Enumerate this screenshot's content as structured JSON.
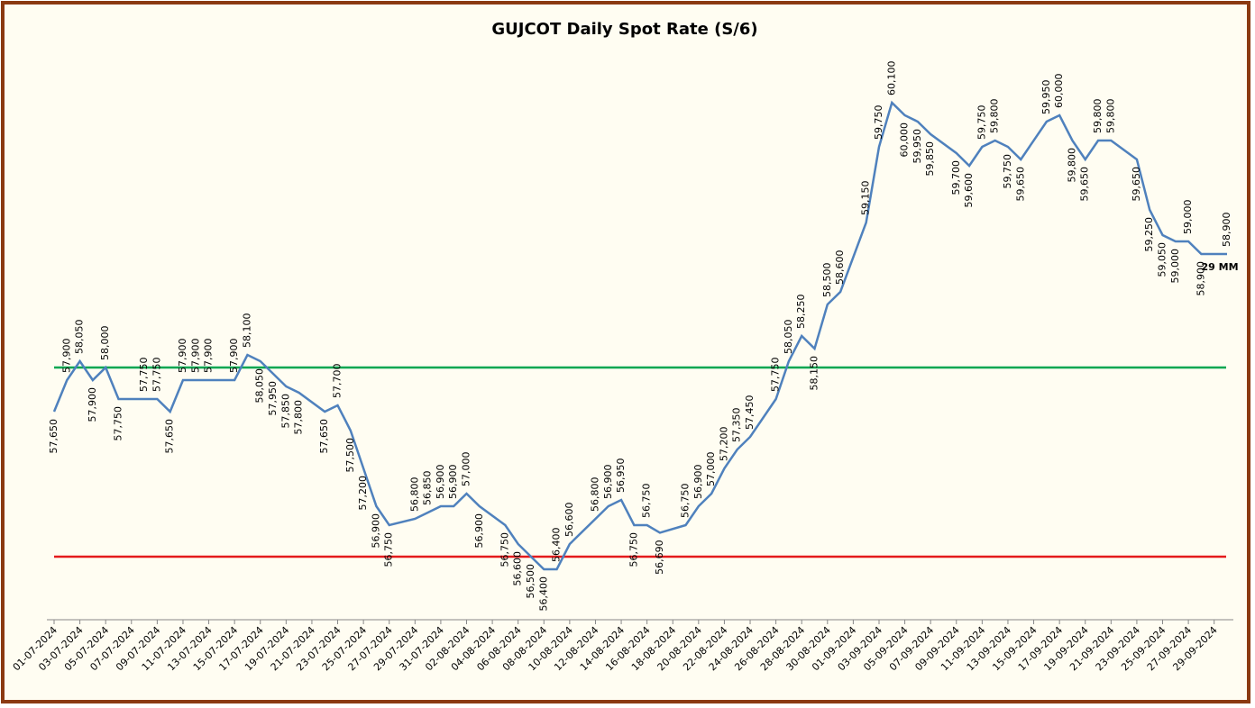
{
  "chart_data": {
    "type": "line",
    "title": "GUJCOT Daily Spot Rate (S/6)",
    "annotation": "29 MM",
    "x": [
      "01-07-2024",
      "02-07-2024",
      "03-07-2024",
      "04-07-2024",
      "05-07-2024",
      "06-07-2024",
      "08-07-2024",
      "09-07-2024",
      "10-07-2024",
      "11-07-2024",
      "12-07-2024",
      "13-07-2024",
      "15-07-2024",
      "16-07-2024",
      "17-07-2024",
      "18-07-2024",
      "19-07-2024",
      "20-07-2024",
      "22-07-2024",
      "23-07-2024",
      "24-07-2024",
      "25-07-2024",
      "26-07-2024",
      "27-07-2024",
      "29-07-2024",
      "30-07-2024",
      "31-07-2024",
      "01-08-2024",
      "02-08-2024",
      "03-08-2024",
      "05-08-2024",
      "06-08-2024",
      "07-08-2024",
      "08-08-2024",
      "09-08-2024",
      "10-08-2024",
      "12-08-2024",
      "13-08-2024",
      "14-08-2024",
      "15-08-2024",
      "16-08-2024",
      "17-08-2024",
      "19-08-2024",
      "20-08-2024",
      "21-08-2024",
      "22-08-2024",
      "23-08-2024",
      "24-08-2024",
      "26-08-2024",
      "27-08-2024",
      "28-08-2024",
      "29-08-2024",
      "30-08-2024",
      "31-08-2024",
      "02-09-2024",
      "03-09-2024",
      "04-09-2024",
      "05-09-2024",
      "06-09-2024",
      "07-09-2024",
      "09-09-2024",
      "10-09-2024",
      "11-09-2024",
      "12-09-2024",
      "13-09-2024",
      "14-09-2024",
      "16-09-2024",
      "17-09-2024",
      "18-09-2024",
      "19-09-2024",
      "20-09-2024",
      "21-09-2024",
      "23-09-2024",
      "24-09-2024",
      "25-09-2024",
      "26-09-2024",
      "27-09-2024",
      "28-09-2024",
      "30-09-2024"
    ],
    "series": [
      {
        "color": "#4f81bd",
        "values": [
          57650,
          57900,
          58050,
          57900,
          58000,
          57750,
          57750,
          57750,
          57650,
          57900,
          57900,
          57900,
          57900,
          58100,
          58050,
          57950,
          57850,
          57800,
          57650,
          57700,
          57500,
          57200,
          56900,
          56750,
          56800,
          56850,
          56900,
          56900,
          57000,
          56900,
          56750,
          56600,
          56500,
          56400,
          56400,
          56600,
          56800,
          56900,
          56950,
          56750,
          56750,
          56690,
          56750,
          56900,
          57000,
          57200,
          57350,
          57450,
          57750,
          58050,
          58250,
          58150,
          58500,
          58600,
          59150,
          59750,
          60100,
          60000,
          59950,
          59850,
          59700,
          59600,
          59750,
          59800,
          59750,
          59650,
          59950,
          60000,
          59800,
          59650,
          59800,
          59800,
          59650,
          59250,
          59050,
          59000,
          59000,
          58900,
          58900
        ],
        "value_labels": [
          "57,650",
          "57,900",
          "58,050",
          "57,900",
          "58,000",
          "57,750",
          "57,750",
          "57,750",
          "57,650",
          "57,900",
          "57,900",
          "57,900",
          "57,900",
          "58,100",
          "58,050",
          "57,950",
          "57,850",
          "57,800",
          "57,650",
          "57,700",
          "57,500",
          "57,200",
          "56,900",
          "56,750",
          "56,800",
          "56,850",
          "56,900",
          "56,900",
          "57,000",
          "56,900",
          "56,750",
          "56,600",
          "56,500",
          "56,400",
          "56,400",
          "56,600",
          "56,800",
          "56,900",
          "56,950",
          "56,750",
          "56,750",
          "56,690",
          "56,750",
          "56,900",
          "57,000",
          "57,200",
          "57,350",
          "57,450",
          "57,750",
          "58,050",
          "58,250",
          "58,150",
          "58,500",
          "58,600",
          "59,150",
          "59,750",
          "60,100",
          "60,000",
          "59,950",
          "59,850",
          "59,700",
          "59,600",
          "59,750",
          "59,800",
          "59,750",
          "59,650",
          "59,950",
          "60,000",
          "59,800",
          "59,650",
          "59,800",
          "59,800",
          "59,650",
          "59,250",
          "59,050",
          "59,000",
          "59,000",
          "58,900",
          "58,900"
        ]
      }
    ],
    "reference_lines": [
      {
        "value": 58000,
        "color": "#00a651"
      },
      {
        "value": 56500,
        "color": "#e41a1c"
      }
    ],
    "xlim": [
      "01-07-2024",
      "30-09-2024"
    ],
    "xticks": [
      "01-07-2024",
      "03-07-2024",
      "05-07-2024",
      "07-07-2024",
      "09-07-2024",
      "11-07-2024",
      "13-07-2024",
      "15-07-2024",
      "17-07-2024",
      "19-07-2024",
      "21-07-2024",
      "23-07-2024",
      "25-07-2024",
      "27-07-2024",
      "29-07-2024",
      "31-07-2024",
      "02-08-2024",
      "04-08-2024",
      "06-08-2024",
      "08-08-2024",
      "10-08-2024",
      "12-08-2024",
      "14-08-2024",
      "16-08-2024",
      "18-08-2024",
      "20-08-2024",
      "22-08-2024",
      "24-08-2024",
      "26-08-2024",
      "28-08-2024",
      "30-08-2024",
      "01-09-2024",
      "03-09-2024",
      "05-09-2024",
      "07-09-2024",
      "09-09-2024",
      "11-09-2024",
      "13-09-2024",
      "15-09-2024",
      "17-09-2024",
      "19-09-2024",
      "21-09-2024",
      "23-09-2024",
      "25-09-2024",
      "27-09-2024",
      "29-09-2024"
    ],
    "ylim": [
      56000,
      60600
    ]
  }
}
